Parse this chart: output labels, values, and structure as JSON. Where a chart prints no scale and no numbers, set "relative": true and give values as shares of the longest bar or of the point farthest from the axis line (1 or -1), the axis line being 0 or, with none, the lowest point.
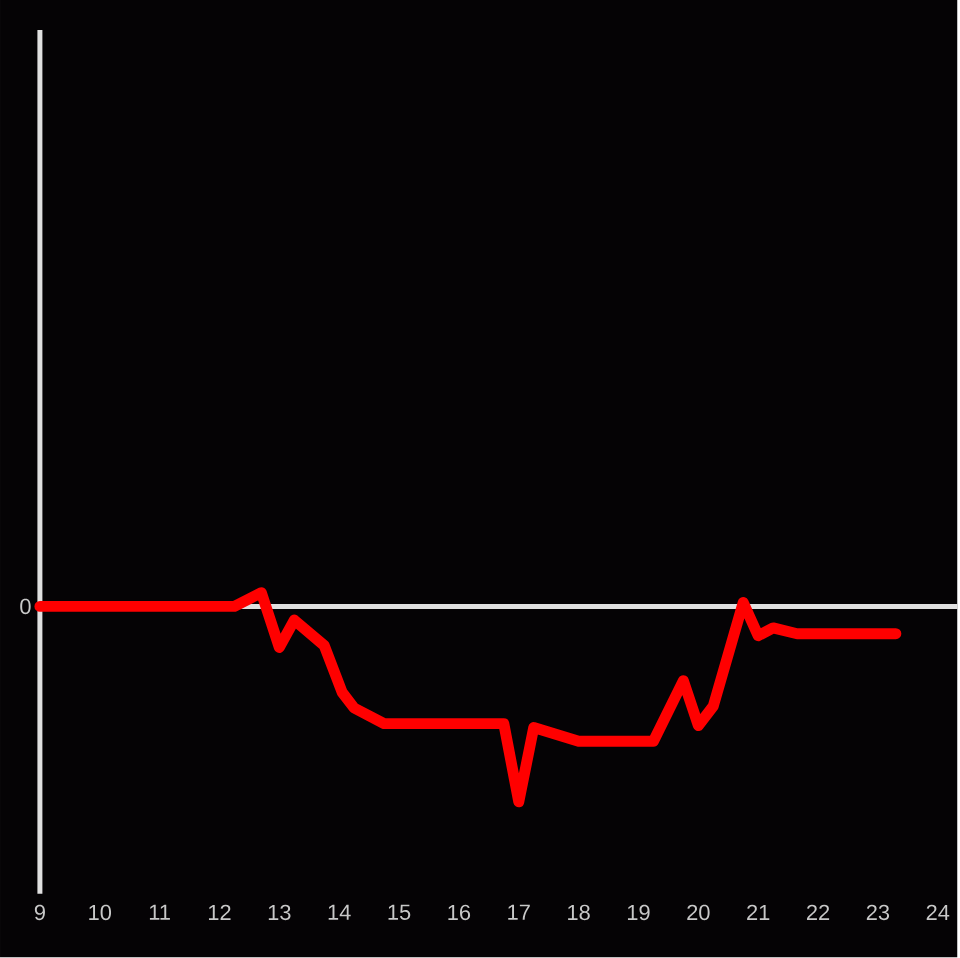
{
  "chart_data": {
    "type": "line",
    "relative": true,
    "x": [
      9,
      12.25,
      12.7,
      13.0,
      13.25,
      13.75,
      14.05,
      14.25,
      14.75,
      16.75,
      17.0,
      17.25,
      18.0,
      19.25,
      19.75,
      20.0,
      20.25,
      20.75,
      21.0,
      21.25,
      21.65,
      23.3
    ],
    "values": [
      0,
      0,
      0.07,
      -0.21,
      -0.07,
      -0.2,
      -0.44,
      -0.52,
      -0.6,
      -0.6,
      -1,
      -0.62,
      -0.69,
      -0.69,
      -0.38,
      -0.61,
      -0.51,
      0.02,
      -0.15,
      -0.11,
      -0.14,
      -0.14
    ],
    "color": "#ff0000",
    "xlim": [
      9,
      24.33
    ],
    "xticks": [
      9,
      10,
      11,
      12,
      13,
      14,
      15,
      16,
      17,
      18,
      19,
      20,
      21,
      22,
      23,
      24
    ],
    "ref_lines": [
      {
        "axis": "y",
        "value": 0,
        "label": "0"
      }
    ]
  }
}
